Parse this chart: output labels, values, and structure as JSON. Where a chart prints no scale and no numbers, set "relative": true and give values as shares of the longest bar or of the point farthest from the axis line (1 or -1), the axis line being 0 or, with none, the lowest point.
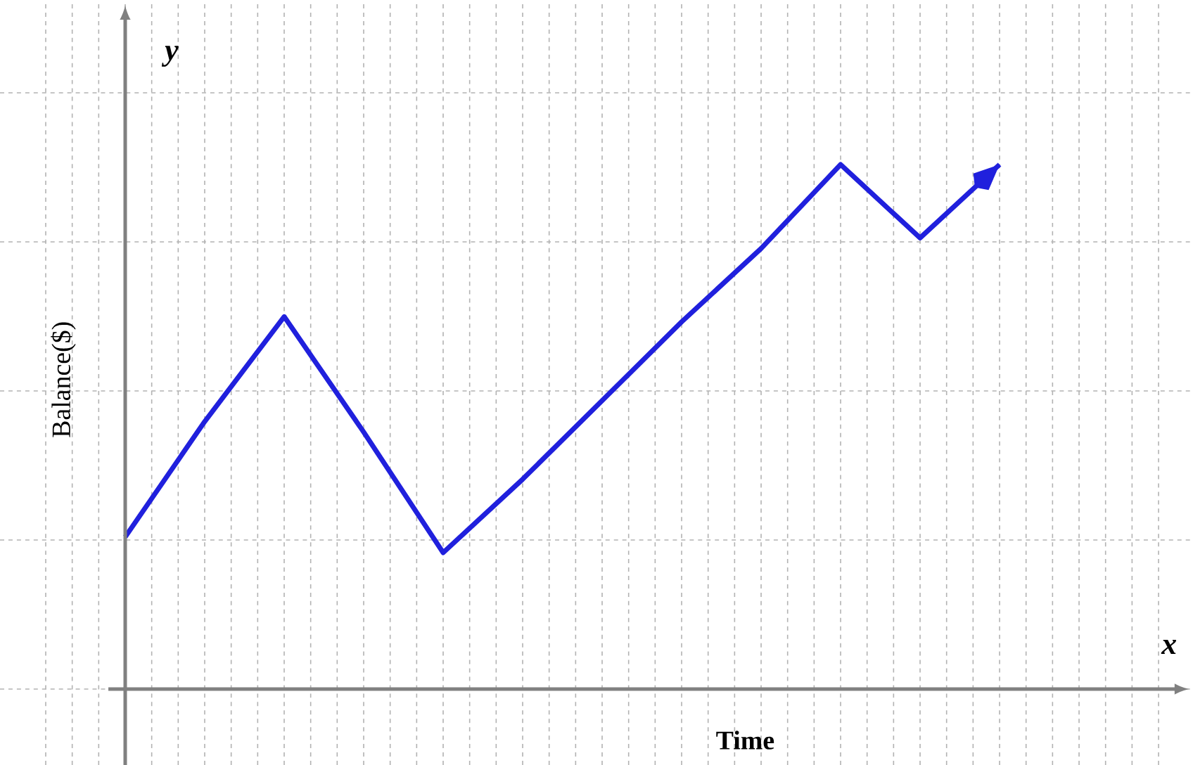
{
  "chart_data": {
    "type": "line",
    "relative": true,
    "xlabel": "Time",
    "ylabel": "Balance($)",
    "annotations": [
      "y",
      "x"
    ],
    "grid": true,
    "color": "#2020dd",
    "categories": [
      null,
      null,
      null,
      null,
      null,
      null,
      null,
      null,
      null,
      null,
      null,
      null
    ],
    "values": [
      0.29,
      0.51,
      0.71,
      0.49,
      0.26,
      0.4,
      0.55,
      0.7,
      0.84,
      1,
      0.86,
      1
    ]
  }
}
